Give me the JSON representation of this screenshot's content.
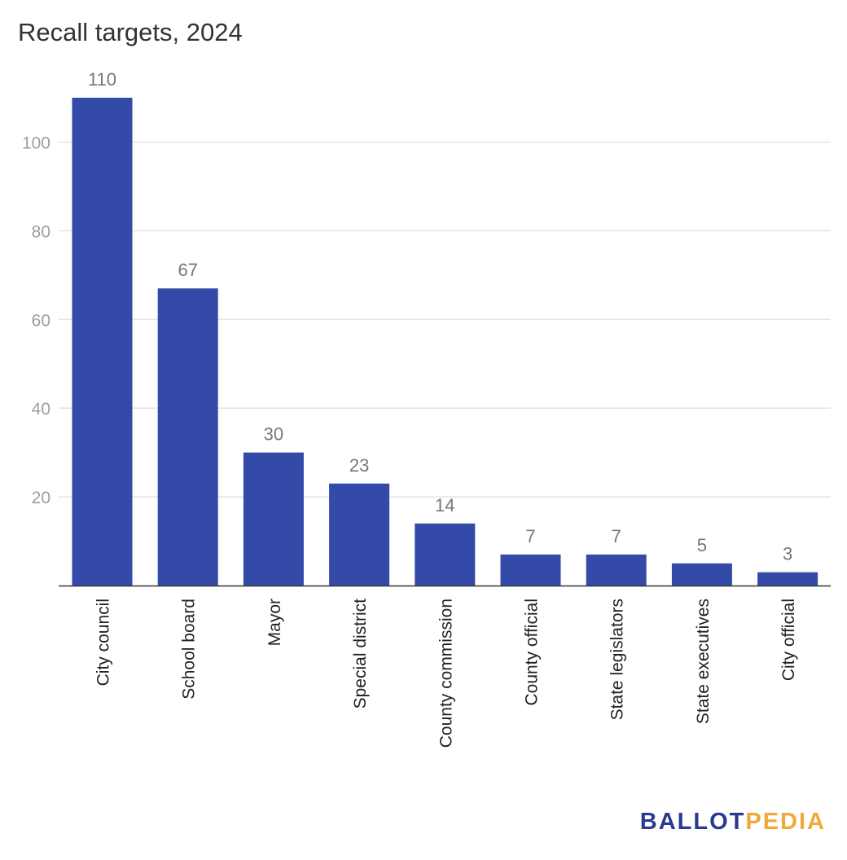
{
  "chart_data": {
    "type": "bar",
    "title": "Recall targets, 2024",
    "xlabel": "",
    "ylabel": "",
    "categories": [
      "City council",
      "School board",
      "Mayor",
      "Special district",
      "County commission",
      "County official",
      "State legislators",
      "State executives",
      "City official"
    ],
    "values": [
      110,
      67,
      30,
      23,
      14,
      7,
      7,
      5,
      3
    ],
    "ylim": [
      0,
      110
    ],
    "yticks": [
      20,
      40,
      60,
      80,
      100
    ],
    "grid": true,
    "legend": "none",
    "colors": {
      "bar": "#344aa8",
      "grid": "#e3e3e3",
      "tick_label": "#9e9e9e",
      "value_label": "#777777",
      "axis": "#333333"
    }
  },
  "logo": {
    "part1": "BALLOT",
    "part2": "PEDIA"
  }
}
